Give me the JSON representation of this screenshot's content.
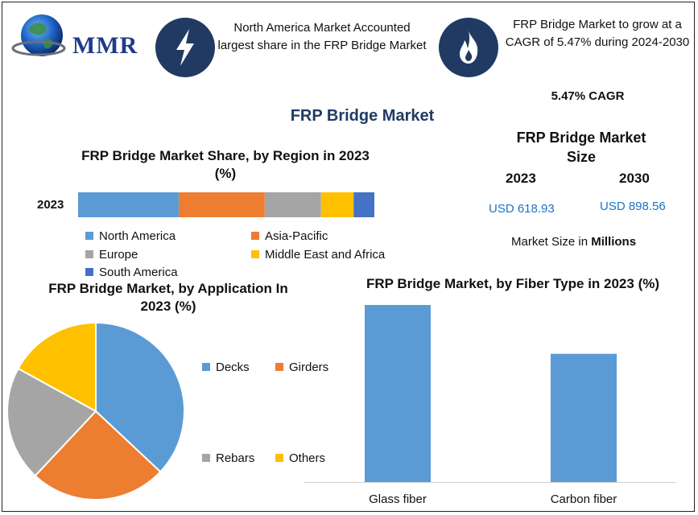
{
  "brand": {
    "logo_text": "MMR"
  },
  "callouts": {
    "left": "North America Market Accounted largest share in the FRP Bridge Market",
    "right": "FRP Bridge Market to grow at a CAGR of 5.47% during 2024-2030"
  },
  "icons": {
    "left": "lightning-bolt-icon",
    "right": "flame-icon",
    "logo": "globe-logo-icon"
  },
  "main_title": "FRP Bridge Market",
  "cagr_label": "5.47% CAGR",
  "size_panel": {
    "title": "FRP Bridge Market Size",
    "year1": "2023",
    "year2": "2030",
    "value1": "USD 618.93",
    "value2": "USD 898.56",
    "unit_prefix": "Market Size in ",
    "unit_bold": "Millions"
  },
  "colors": {
    "blue": "#5b9bd5",
    "orange": "#ed7d31",
    "gray": "#a5a5a5",
    "yellow": "#ffc000",
    "darkblue": "#4472c4",
    "navy": "#213a63",
    "value_blue": "#1a73c8"
  },
  "chart_data": [
    {
      "type": "bar",
      "orientation": "horizontal-stacked-100",
      "title": "FRP Bridge Market Share, by Region in 2023 (%)",
      "categories": [
        "2023"
      ],
      "series": [
        {
          "name": "North America",
          "values": [
            34
          ],
          "color": "#5b9bd5"
        },
        {
          "name": "Asia-Pacific",
          "values": [
            29
          ],
          "color": "#ed7d31"
        },
        {
          "name": "Europe",
          "values": [
            19
          ],
          "color": "#a5a5a5"
        },
        {
          "name": "Middle East and Africa",
          "values": [
            11
          ],
          "color": "#ffc000"
        },
        {
          "name": "South America",
          "values": [
            7
          ],
          "color": "#4472c4"
        }
      ]
    },
    {
      "type": "pie",
      "title": "FRP Bridge Market, by Application In 2023 (%)",
      "slices": [
        {
          "label": "Decks",
          "value": 37,
          "color": "#5b9bd5"
        },
        {
          "label": "Girders",
          "value": 25,
          "color": "#ed7d31"
        },
        {
          "label": "Rebars",
          "value": 21,
          "color": "#a5a5a5"
        },
        {
          "label": "Others",
          "value": 17,
          "color": "#ffc000"
        }
      ]
    },
    {
      "type": "bar",
      "title": "FRP Bridge Market, by Fiber Type in 2023 (%)",
      "categories": [
        "Glass fiber",
        "Carbon fiber"
      ],
      "values": [
        58,
        42
      ],
      "color": "#5b9bd5",
      "ylim": [
        0,
        58
      ]
    }
  ]
}
